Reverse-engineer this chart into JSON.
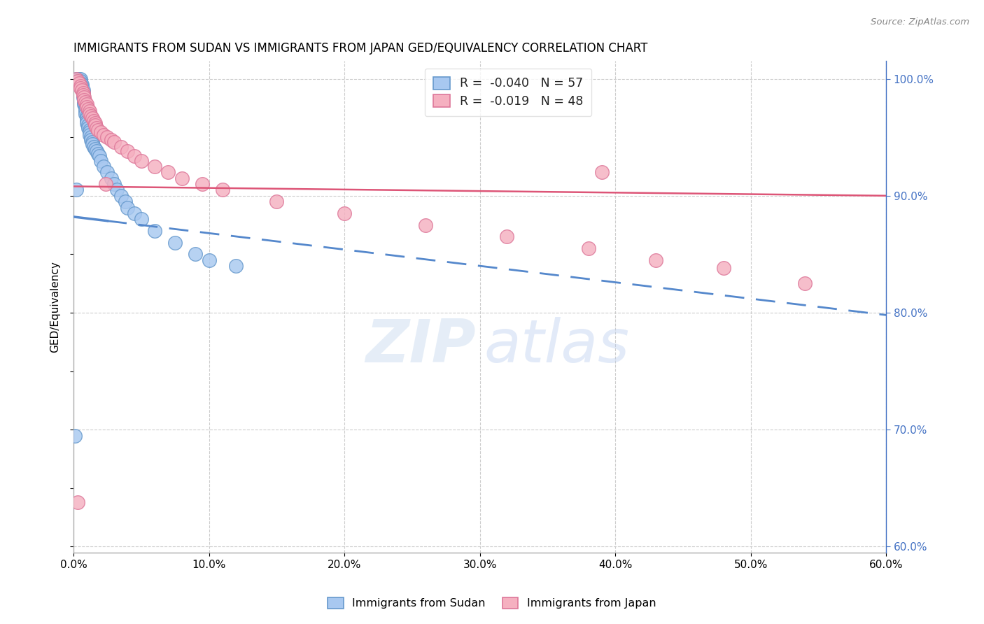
{
  "title": "IMMIGRANTS FROM SUDAN VS IMMIGRANTS FROM JAPAN GED/EQUIVALENCY CORRELATION CHART",
  "source": "Source: ZipAtlas.com",
  "ylabel": "GED/Equivalency",
  "ytick_vals": [
    60.0,
    70.0,
    80.0,
    90.0,
    100.0
  ],
  "xlim": [
    0.0,
    0.6
  ],
  "ylim": [
    0.595,
    1.015
  ],
  "legend_r_sudan": "-0.040",
  "legend_n_sudan": "57",
  "legend_r_japan": "-0.019",
  "legend_n_japan": "48",
  "sudan_color": "#a8c8f0",
  "japan_color": "#f5b0c0",
  "sudan_edge": "#6699cc",
  "japan_edge": "#dd7799",
  "blue_line_color": "#5588cc",
  "pink_line_color": "#dd5577",
  "blue_line_solid_end": 0.025,
  "blue_line_y0": 0.882,
  "blue_line_y1": 0.798,
  "pink_line_y0": 0.908,
  "pink_line_y1": 0.9,
  "watermark_zip": "ZIP",
  "watermark_atlas": "atlas",
  "sudan_x": [
    0.001,
    0.002,
    0.003,
    0.004,
    0.004,
    0.005,
    0.005,
    0.005,
    0.006,
    0.006,
    0.006,
    0.007,
    0.007,
    0.007,
    0.007,
    0.008,
    0.008,
    0.008,
    0.009,
    0.009,
    0.009,
    0.009,
    0.01,
    0.01,
    0.01,
    0.01,
    0.011,
    0.011,
    0.012,
    0.012,
    0.012,
    0.013,
    0.013,
    0.014,
    0.014,
    0.015,
    0.016,
    0.017,
    0.018,
    0.019,
    0.02,
    0.022,
    0.025,
    0.028,
    0.03,
    0.032,
    0.035,
    0.038,
    0.04,
    0.045,
    0.05,
    0.06,
    0.075,
    0.09,
    0.1,
    0.12,
    0.002
  ],
  "sudan_y": [
    0.695,
    1.0,
    1.0,
    1.0,
    0.998,
    1.0,
    0.998,
    0.996,
    0.995,
    0.993,
    0.991,
    0.99,
    0.988,
    0.986,
    0.984,
    0.982,
    0.98,
    0.978,
    0.976,
    0.974,
    0.972,
    0.97,
    0.968,
    0.966,
    0.964,
    0.962,
    0.96,
    0.958,
    0.956,
    0.954,
    0.952,
    0.95,
    0.948,
    0.946,
    0.944,
    0.942,
    0.94,
    0.938,
    0.936,
    0.934,
    0.93,
    0.925,
    0.92,
    0.915,
    0.91,
    0.905,
    0.9,
    0.895,
    0.89,
    0.885,
    0.88,
    0.87,
    0.86,
    0.85,
    0.845,
    0.84,
    0.905
  ],
  "japan_x": [
    0.002,
    0.003,
    0.004,
    0.005,
    0.005,
    0.006,
    0.007,
    0.007,
    0.008,
    0.008,
    0.009,
    0.01,
    0.01,
    0.011,
    0.012,
    0.012,
    0.013,
    0.014,
    0.015,
    0.016,
    0.016,
    0.017,
    0.018,
    0.02,
    0.022,
    0.025,
    0.028,
    0.03,
    0.035,
    0.04,
    0.045,
    0.05,
    0.06,
    0.07,
    0.08,
    0.095,
    0.11,
    0.15,
    0.2,
    0.26,
    0.32,
    0.38,
    0.43,
    0.48,
    0.54,
    0.003,
    0.024,
    0.39
  ],
  "japan_y": [
    1.0,
    0.998,
    0.996,
    0.994,
    0.992,
    0.99,
    0.988,
    0.986,
    0.984,
    0.982,
    0.98,
    0.978,
    0.976,
    0.974,
    0.972,
    0.97,
    0.968,
    0.966,
    0.964,
    0.962,
    0.96,
    0.958,
    0.956,
    0.954,
    0.952,
    0.95,
    0.948,
    0.946,
    0.942,
    0.938,
    0.934,
    0.93,
    0.925,
    0.92,
    0.915,
    0.91,
    0.905,
    0.895,
    0.885,
    0.875,
    0.865,
    0.855,
    0.845,
    0.838,
    0.825,
    0.638,
    0.91,
    0.92
  ]
}
